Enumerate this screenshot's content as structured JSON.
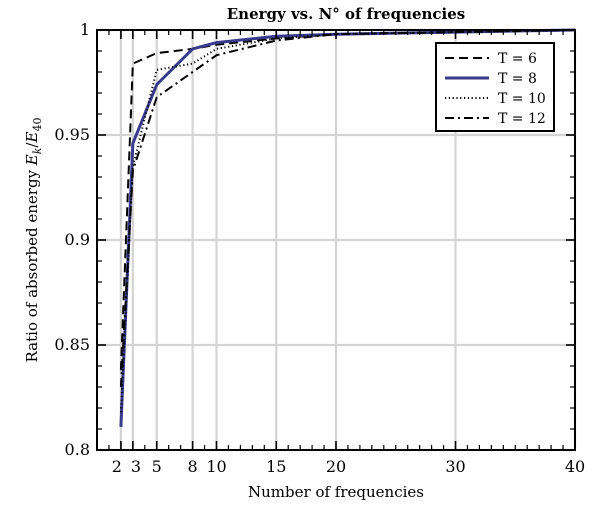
{
  "chart_data": {
    "type": "line",
    "title": "Energy vs. N° of frequencies",
    "xlabel": "Number of frequencies",
    "ylabel": "Ratio of absorbed energy E_k / E_40",
    "xlim": [
      0,
      40
    ],
    "ylim": [
      0.8,
      1.0
    ],
    "x_ticks": [
      2,
      3,
      5,
      8,
      10,
      15,
      20,
      30,
      40
    ],
    "y_ticks": [
      0.8,
      0.85,
      0.9,
      0.95,
      1.0
    ],
    "y_tick_labels": [
      "0.8",
      "0.85",
      "0.9",
      "0.95",
      "1"
    ],
    "grid": true,
    "legend_position": "top-right",
    "series": [
      {
        "name": "T = 6",
        "color": "#000000",
        "dash": "dashed",
        "x": [
          2,
          3,
          5,
          8,
          10,
          15,
          20,
          30,
          40
        ],
        "y": [
          0.838,
          0.984,
          0.989,
          0.991,
          0.993,
          0.996,
          0.998,
          0.999,
          1.0
        ]
      },
      {
        "name": "T = 8",
        "color": "#3a3a8c",
        "dash": "solid",
        "x": [
          2,
          3,
          5,
          8,
          10,
          15,
          20,
          30,
          40
        ],
        "y": [
          0.811,
          0.946,
          0.974,
          0.991,
          0.994,
          0.997,
          0.998,
          0.999,
          1.0
        ]
      },
      {
        "name": "T = 10",
        "color": "#000000",
        "dash": "dotted",
        "x": [
          2,
          3,
          5,
          8,
          10,
          15,
          20,
          30,
          40
        ],
        "y": [
          0.818,
          0.935,
          0.981,
          0.984,
          0.991,
          0.996,
          0.998,
          0.999,
          1.0
        ]
      },
      {
        "name": "T = 12",
        "color": "#000000",
        "dash": "dashdot",
        "x": [
          2,
          3,
          5,
          8,
          10,
          15,
          20,
          30,
          40
        ],
        "y": [
          0.83,
          0.933,
          0.968,
          0.98,
          0.988,
          0.995,
          0.998,
          0.999,
          1.0
        ]
      }
    ]
  }
}
